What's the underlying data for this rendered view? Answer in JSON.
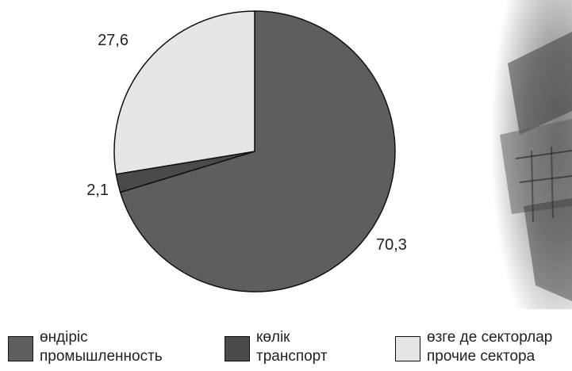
{
  "chart_data": {
    "type": "pie",
    "slices": [
      {
        "value": 70.3,
        "label": "70,3",
        "color": "#5e5e5e"
      },
      {
        "value": 2.1,
        "label": "2,1",
        "color": "#4a4a4a"
      },
      {
        "value": 27.6,
        "label": "27,6",
        "color": "#e6e6e6"
      }
    ],
    "start_angle_deg": 0,
    "direction": "clockwise",
    "legend": [
      {
        "line1": "өндіріс",
        "line2": "промышленность",
        "color": "#5e5e5e"
      },
      {
        "line1": "көлік",
        "line2": "транспорт",
        "color": "#4a4a4a"
      },
      {
        "line1": "өзге де секторлар",
        "line2": "прочие сектора",
        "color": "#e6e6e6"
      }
    ],
    "legend_position": "bottom"
  },
  "colors": {
    "outline": "#111111",
    "background_photo": "grayscale industrial photo"
  }
}
